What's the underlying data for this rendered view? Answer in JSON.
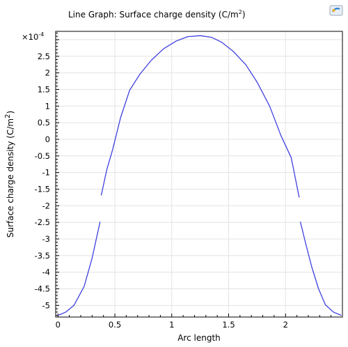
{
  "chart_data": {
    "type": "line",
    "title": "Line Graph: Surface charge density (C/m",
    "title_sup": "2",
    "title_suffix": ")",
    "xlabel": "Arc length",
    "ylabel": "Surface charge density (C/m",
    "ylabel_sup": "2",
    "ylabel_suffix": ")",
    "y_multiplier_prefix": "×10",
    "y_multiplier_exp": "-4",
    "xlim": [
      -0.02,
      2.5
    ],
    "ylim": [
      -5.35,
      3.25
    ],
    "x_ticks": [
      0,
      0.5,
      1,
      1.5,
      2
    ],
    "x_tick_labels": [
      "0",
      "0.5",
      "1",
      "1.5",
      "2"
    ],
    "y_ticks": [
      2.5,
      2,
      1.5,
      1,
      0.5,
      0,
      -0.5,
      -1,
      -1.5,
      -2,
      -2.5,
      -3,
      -3.5,
      -4,
      -4.5,
      -5
    ],
    "y_tick_labels": [
      "2.5",
      "2",
      "1.5",
      "1",
      "0.5",
      "0",
      "-0.5",
      "-1",
      "-1.5",
      "-2",
      "-2.5",
      "-3",
      "-3.5",
      "-4",
      "-4.5",
      "-5"
    ],
    "grid": true,
    "line_color": "#4040e0",
    "series": [
      {
        "x": [
          0,
          0.07,
          0.14,
          0.23,
          0.3,
          0.37
        ],
        "y": [
          -5.3,
          -5.2,
          -5.0,
          -4.43,
          -3.58,
          -2.48
        ]
      },
      {
        "x": [
          0.38,
          0.43,
          0.48,
          0.55,
          0.63,
          0.72,
          0.82,
          0.93,
          1.04,
          1.14,
          1.25,
          1.35,
          1.44,
          1.54,
          1.65,
          1.75,
          1.86,
          1.96,
          2.05,
          2.12
        ],
        "y": [
          -1.69,
          -0.9,
          -0.32,
          0.65,
          1.48,
          1.96,
          2.38,
          2.73,
          2.96,
          3.09,
          3.12,
          3.07,
          2.92,
          2.65,
          2.25,
          1.72,
          1.0,
          0.11,
          -0.55,
          -1.75
        ]
      },
      {
        "x": [
          2.13,
          2.18,
          2.23,
          2.29,
          2.35,
          2.42,
          2.49
        ],
        "y": [
          -2.48,
          -3.18,
          -3.84,
          -4.5,
          -4.98,
          -5.2,
          -5.3
        ]
      }
    ]
  }
}
